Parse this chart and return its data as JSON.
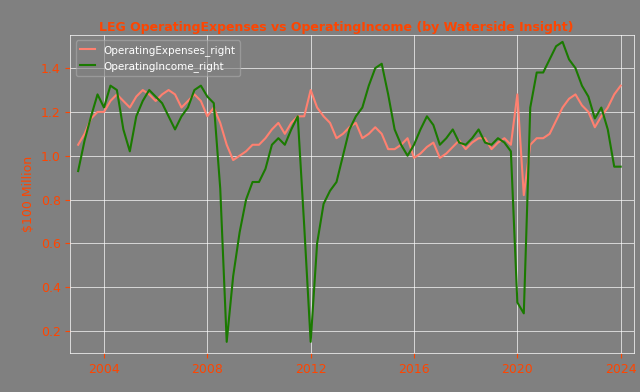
{
  "title": "LEG OperatingExpenses vs OperatingIncome (by Waterside Insight)",
  "ylabel": "$100 Million",
  "legend_labels": [
    "OperatingExpenses_right",
    "OperatingIncome_right"
  ],
  "line_colors": [
    "#FF8070",
    "#1A7A00"
  ],
  "background_color": "#808080",
  "fig_bg_color": "#808080",
  "title_color": "#FF4500",
  "ylabel_color": "#FF4500",
  "tick_color": "#FF4500",
  "ylim": [
    0.1,
    1.55
  ],
  "yticks": [
    0.2,
    0.4,
    0.6,
    0.8,
    1.0,
    1.2,
    1.4
  ],
  "grid_color": "#FFFFFF",
  "line_width": 1.5,
  "x_num": [
    2003.0,
    2003.25,
    2003.5,
    2003.75,
    2004.0,
    2004.25,
    2004.5,
    2004.75,
    2005.0,
    2005.25,
    2005.5,
    2005.75,
    2006.0,
    2006.25,
    2006.5,
    2006.75,
    2007.0,
    2007.25,
    2007.5,
    2007.75,
    2008.0,
    2008.25,
    2008.5,
    2008.75,
    2009.0,
    2009.25,
    2009.5,
    2009.75,
    2010.0,
    2010.25,
    2010.5,
    2010.75,
    2011.0,
    2011.25,
    2011.5,
    2011.75,
    2012.0,
    2012.25,
    2012.5,
    2012.75,
    2013.0,
    2013.25,
    2013.5,
    2013.75,
    2014.0,
    2014.25,
    2014.5,
    2014.75,
    2015.0,
    2015.25,
    2015.5,
    2015.75,
    2016.0,
    2016.25,
    2016.5,
    2016.75,
    2017.0,
    2017.25,
    2017.5,
    2017.75,
    2018.0,
    2018.25,
    2018.5,
    2018.75,
    2019.0,
    2019.25,
    2019.5,
    2019.75,
    2020.0,
    2020.25,
    2020.5,
    2020.75,
    2021.0,
    2021.25,
    2021.5,
    2021.75,
    2022.0,
    2022.25,
    2022.5,
    2022.75,
    2023.0,
    2023.25,
    2023.5,
    2023.75,
    2024.0
  ],
  "opex": [
    1.05,
    1.1,
    1.17,
    1.2,
    1.2,
    1.25,
    1.28,
    1.25,
    1.22,
    1.27,
    1.3,
    1.28,
    1.25,
    1.28,
    1.3,
    1.28,
    1.22,
    1.25,
    1.28,
    1.25,
    1.18,
    1.22,
    1.15,
    1.05,
    0.98,
    1.0,
    1.02,
    1.05,
    1.05,
    1.08,
    1.12,
    1.15,
    1.1,
    1.15,
    1.18,
    1.18,
    1.3,
    1.22,
    1.18,
    1.15,
    1.08,
    1.1,
    1.13,
    1.15,
    1.08,
    1.1,
    1.13,
    1.1,
    1.03,
    1.03,
    1.05,
    1.08,
    0.99,
    1.01,
    1.04,
    1.06,
    0.99,
    1.01,
    1.04,
    1.07,
    1.03,
    1.06,
    1.08,
    1.08,
    1.03,
    1.06,
    1.08,
    1.05,
    1.28,
    0.82,
    1.05,
    1.08,
    1.08,
    1.1,
    1.16,
    1.22,
    1.26,
    1.28,
    1.23,
    1.2,
    1.13,
    1.18,
    1.22,
    1.28,
    1.32
  ],
  "opinc": [
    0.93,
    1.07,
    1.18,
    1.28,
    1.22,
    1.32,
    1.3,
    1.12,
    1.02,
    1.18,
    1.25,
    1.3,
    1.27,
    1.24,
    1.18,
    1.12,
    1.18,
    1.22,
    1.3,
    1.32,
    1.27,
    1.24,
    0.85,
    0.15,
    0.45,
    0.65,
    0.8,
    0.88,
    0.88,
    0.94,
    1.05,
    1.08,
    1.05,
    1.12,
    1.18,
    0.68,
    0.15,
    0.6,
    0.78,
    0.84,
    0.88,
    1.0,
    1.12,
    1.18,
    1.22,
    1.32,
    1.4,
    1.42,
    1.28,
    1.12,
    1.05,
    1.0,
    1.05,
    1.12,
    1.18,
    1.14,
    1.05,
    1.08,
    1.12,
    1.06,
    1.05,
    1.08,
    1.12,
    1.06,
    1.05,
    1.08,
    1.06,
    1.02,
    0.33,
    0.28,
    1.22,
    1.38,
    1.38,
    1.44,
    1.5,
    1.52,
    1.44,
    1.4,
    1.32,
    1.27,
    1.17,
    1.22,
    1.12,
    0.95,
    0.95
  ],
  "xlim": [
    2002.7,
    2024.5
  ],
  "xticks": [
    2004,
    2008,
    2012,
    2016,
    2020,
    2024
  ]
}
